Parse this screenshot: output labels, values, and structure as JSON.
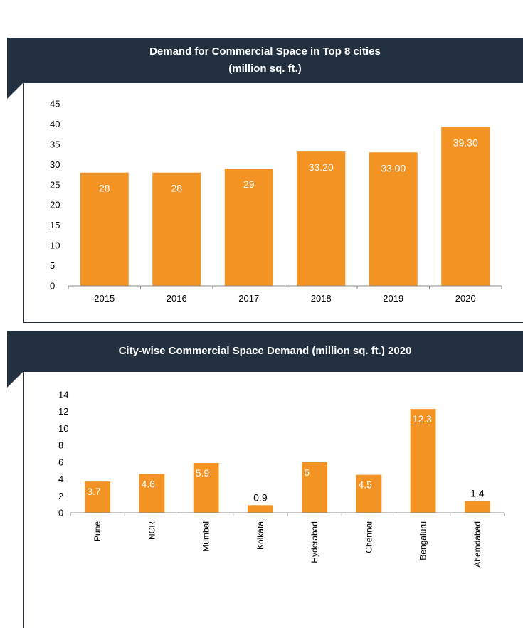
{
  "colors": {
    "header_bg": "#22303f",
    "bar": "#f39324",
    "frame": "#22303f"
  },
  "chart_data": [
    {
      "type": "bar",
      "title_lines": [
        "Demand for Commercial Space in Top 8 cities",
        "(million sq. ft.)"
      ],
      "categories": [
        "2015",
        "2016",
        "2017",
        "2018",
        "2019",
        "2020"
      ],
      "values": [
        28,
        28,
        29,
        33.2,
        33.0,
        39.3
      ],
      "data_labels": [
        "28",
        "28",
        "29",
        "33.20",
        "33.00",
        "39.30"
      ],
      "yticks": [
        "0",
        "5",
        "10",
        "15",
        "20",
        "25",
        "30",
        "35",
        "40",
        "45"
      ],
      "ylim": [
        0,
        45
      ],
      "grid": false
    },
    {
      "type": "bar",
      "title": "City-wise Commercial Space Demand (million sq. ft.) 2020",
      "categories": [
        "Pune",
        "NCR",
        "Mumbai",
        "Kolkata",
        "Hyderabad",
        "Chennai",
        "Bengaluru",
        "Ahemdabad"
      ],
      "values": [
        3.7,
        4.6,
        5.9,
        0.9,
        6,
        4.5,
        12.3,
        1.4
      ],
      "data_labels": [
        "3.7",
        "4.6",
        "5.9",
        "0.9",
        "6",
        "4.5",
        "12.3",
        "1.4"
      ],
      "yticks": [
        "0",
        "2",
        "4",
        "6",
        "8",
        "10",
        "12",
        "14"
      ],
      "ylim": [
        0,
        14
      ],
      "grid": false
    }
  ]
}
